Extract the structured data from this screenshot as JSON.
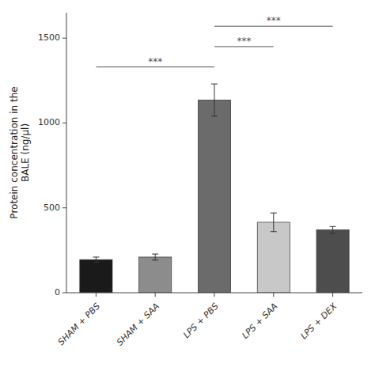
{
  "chart_data": {
    "type": "bar",
    "categories": [
      "SHAM + PBS",
      "SHAM + SAA",
      "LPS + PBS",
      "LPS + SAA",
      "LPS + DEX"
    ],
    "values": [
      195,
      210,
      1135,
      415,
      370
    ],
    "errors": [
      15,
      18,
      95,
      55,
      20
    ],
    "colors": [
      "#1a1a1a",
      "#8c8c8c",
      "#6b6b6b",
      "#c8c8c8",
      "#4d4d4d"
    ],
    "ylabel": "Protein concentration in the\nBALE (ng/μl)",
    "ylim": [
      0,
      1650
    ],
    "yticks": [
      0,
      500,
      1000,
      1500
    ],
    "grid": false,
    "significance": [
      {
        "x1": 0,
        "x2": 2,
        "y": 1330,
        "label": "***"
      },
      {
        "x1": 2,
        "x2": 3,
        "y": 1450,
        "label": "***"
      },
      {
        "x1": 2,
        "x2": 4,
        "y": 1570,
        "label": "***"
      }
    ]
  }
}
